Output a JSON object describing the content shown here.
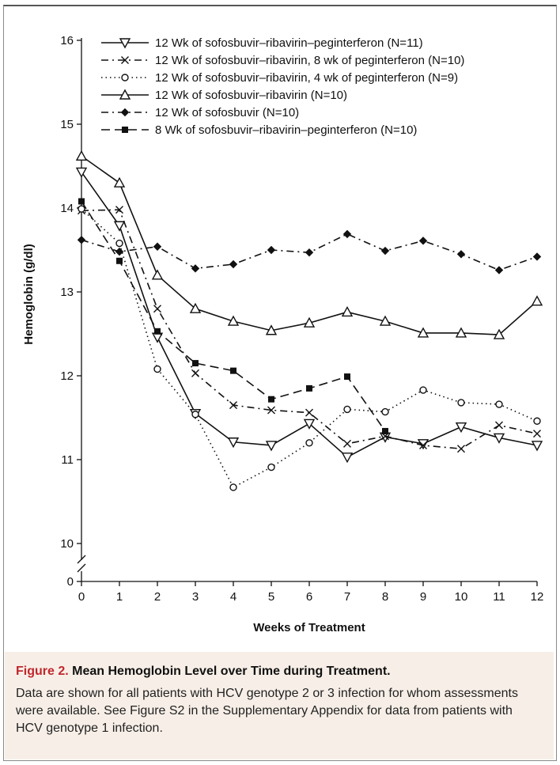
{
  "chart_data": {
    "type": "line",
    "xlabel": "Weeks of Treatment",
    "ylabel": "Hemoglobin (g/dl)",
    "x": [
      0,
      1,
      2,
      3,
      4,
      5,
      6,
      7,
      8,
      9,
      10,
      11,
      12
    ],
    "xticks": [
      "0",
      "1",
      "2",
      "3",
      "4",
      "5",
      "6",
      "7",
      "8",
      "9",
      "10",
      "11",
      "12"
    ],
    "yticks": [
      "0",
      "10",
      "11",
      "12",
      "13",
      "14",
      "15",
      "16"
    ],
    "ylim": [
      10,
      16
    ],
    "axis_break": true,
    "grid": false,
    "legend_position": "top",
    "series": [
      {
        "name": "12 Wk of sofosbuvir–ribavirin–peginterferon (N=11)",
        "marker": "triangle-down-open",
        "dash": "solid",
        "values": [
          14.43,
          13.79,
          12.46,
          11.55,
          11.21,
          11.17,
          11.43,
          11.03,
          11.27,
          11.19,
          11.39,
          11.26,
          11.17
        ]
      },
      {
        "name": "12 Wk of sofosbuvir–ribavirin, 8 wk of peginterferon (N=10)",
        "marker": "x",
        "dash": "dash-dot",
        "values": [
          13.97,
          13.98,
          12.8,
          12.03,
          11.65,
          11.59,
          11.56,
          11.19,
          11.28,
          11.17,
          11.13,
          11.41,
          11.31
        ]
      },
      {
        "name": "12 Wk of sofosbuvir–ribavirin, 4 wk of peginterferon (N=9)",
        "marker": "circle-open",
        "dash": "dotted",
        "values": [
          13.99,
          13.58,
          12.08,
          11.54,
          10.67,
          10.91,
          11.2,
          11.6,
          11.57,
          11.83,
          11.68,
          11.66,
          11.46
        ]
      },
      {
        "name": "12 Wk of sofosbuvir–ribavirin (N=10)",
        "marker": "triangle-up-open",
        "dash": "solid",
        "values": [
          14.62,
          14.3,
          13.2,
          12.8,
          12.65,
          12.54,
          12.63,
          12.76,
          12.65,
          12.51,
          12.51,
          12.49,
          12.89
        ]
      },
      {
        "name": "12 Wk of sofosbuvir (N=10)",
        "marker": "diamond-filled",
        "dash": "dash-dot",
        "values": [
          13.62,
          13.48,
          13.54,
          13.28,
          13.33,
          13.5,
          13.47,
          13.69,
          13.49,
          13.61,
          13.45,
          13.26,
          13.42
        ]
      },
      {
        "name": "8 Wk of sofosbuvir–ribavirin–peginterferon (N=10)",
        "marker": "square-filled",
        "dash": "dashed",
        "values": [
          14.08,
          13.37,
          12.53,
          12.15,
          12.06,
          11.72,
          11.85,
          11.99,
          11.34,
          null,
          null,
          null,
          null
        ]
      }
    ]
  },
  "caption": {
    "label": "Figure 2.",
    "heading": "Mean Hemoglobin Level over Time during Treatment.",
    "text": "Data are shown for all patients with HCV genotype 2 or 3 infection for whom assessments were available. See Figure S2 in the Supplementary Appendix for data from patients with HCV genotype 1 infection."
  }
}
